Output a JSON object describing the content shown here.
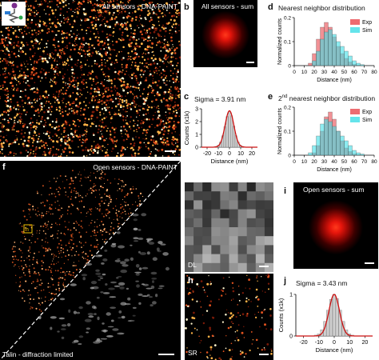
{
  "figure": {
    "panel_a": {
      "letter": "a",
      "caption": "All sensors - DNA-PAINT"
    },
    "panel_b": {
      "letter": "b",
      "caption": "All sensors - sum"
    },
    "panel_c": {
      "letter": "c",
      "caption": "Sigma = 3.91 nm"
    },
    "panel_d": {
      "letter": "d",
      "caption": "Nearest neighbor distribution"
    },
    "panel_e": {
      "letter": "e",
      "caption_pre": "2",
      "caption_sup": "nd",
      "caption_post": " nearest neighbor distribution"
    },
    "panel_f": {
      "letter": "f",
      "caption_top": "Open sensors - DNA-PAINT",
      "caption_bottom": "Talin - diffraction limited",
      "roi_label": "h"
    },
    "panel_g": {
      "letter": "g",
      "label": "DL"
    },
    "panel_h": {
      "letter": "h",
      "label": "SR"
    },
    "panel_i": {
      "letter": "i",
      "caption": "Open sensors - sum"
    },
    "panel_j": {
      "letter": "j",
      "caption": "Sigma = 3.43 nm"
    }
  },
  "colors": {
    "exp": "#e8474e",
    "sim": "#3fdde6",
    "fit": "#cc1111",
    "hist_gray": "#cfcfcf",
    "spot": "#ff2a1a"
  },
  "chart_data": [
    {
      "id": "c",
      "type": "bar",
      "title": "Sigma = 3.91 nm",
      "xlabel": "Distance (nm)",
      "ylabel": "Counts (x1k)",
      "xlim": [
        -25,
        25
      ],
      "ylim": [
        0,
        3
      ],
      "xticks": [
        -20,
        -10,
        0,
        10,
        20
      ],
      "yticks": [
        0,
        1,
        2,
        3
      ],
      "x": [
        -14,
        -12,
        -10,
        -8,
        -6,
        -4,
        -2,
        0,
        2,
        4,
        6,
        8,
        10,
        12,
        14
      ],
      "values": [
        0.02,
        0.06,
        0.15,
        0.4,
        0.9,
        1.6,
        2.4,
        2.8,
        2.45,
        1.65,
        0.9,
        0.4,
        0.15,
        0.06,
        0.02
      ],
      "fit": {
        "type": "gaussian",
        "amplitude": 2.85,
        "mu": 0,
        "sigma": 3.91
      }
    },
    {
      "id": "j",
      "type": "bar",
      "title": "Sigma = 3.43 nm",
      "xlabel": "Distance (nm)",
      "ylabel": "Counts (x1k)",
      "xlim": [
        -25,
        25
      ],
      "ylim": [
        0,
        1
      ],
      "xticks": [
        -20,
        -10,
        0,
        10,
        20
      ],
      "yticks": [
        0,
        1
      ],
      "x": [
        -12,
        -10,
        -8,
        -6,
        -4,
        -2,
        0,
        2,
        4,
        6,
        8,
        10,
        12
      ],
      "values": [
        0.02,
        0.05,
        0.15,
        0.35,
        0.62,
        0.88,
        1.0,
        0.9,
        0.62,
        0.35,
        0.15,
        0.05,
        0.02
      ],
      "fit": {
        "type": "gaussian",
        "amplitude": 1.0,
        "mu": 0,
        "sigma": 3.43
      }
    },
    {
      "id": "d",
      "type": "bar",
      "title": "Nearest neighbor distribution",
      "xlabel": "Distance (nm)",
      "ylabel": "Normalized counts",
      "xlim": [
        0,
        80
      ],
      "ylim": [
        0,
        0.2
      ],
      "xticks": [
        0,
        10,
        20,
        30,
        40,
        50,
        60,
        70,
        80
      ],
      "yticks": [
        0.0,
        0.1,
        0.2
      ],
      "bin_edges": [
        10,
        14,
        18,
        22,
        26,
        30,
        34,
        38,
        42,
        46,
        50,
        54,
        58,
        62,
        66,
        70
      ],
      "legend": [
        "Exp",
        "Sim"
      ],
      "series": [
        {
          "name": "Exp",
          "values": [
            0.0,
            0.01,
            0.05,
            0.11,
            0.16,
            0.18,
            0.16,
            0.12,
            0.08,
            0.05,
            0.03,
            0.015,
            0.005,
            0.002,
            0.0
          ]
        },
        {
          "name": "Sim",
          "values": [
            0.0,
            0.0,
            0.02,
            0.06,
            0.11,
            0.14,
            0.15,
            0.13,
            0.1,
            0.08,
            0.06,
            0.04,
            0.02,
            0.01,
            0.004
          ]
        }
      ]
    },
    {
      "id": "e",
      "type": "bar",
      "title": "2nd nearest neighbor distribution",
      "xlabel": "Distance (nm)",
      "ylabel": "Normalized counts",
      "xlim": [
        0,
        80
      ],
      "ylim": [
        0,
        0.2
      ],
      "xticks": [
        0,
        10,
        20,
        30,
        40,
        50,
        60,
        70,
        80
      ],
      "yticks": [
        0.0,
        0.1,
        0.2
      ],
      "bin_edges": [
        14,
        18,
        22,
        26,
        30,
        34,
        38,
        42,
        46,
        50,
        54,
        58,
        62,
        66,
        70
      ],
      "legend": [
        "Exp",
        "Sim"
      ],
      "series": [
        {
          "name": "Exp",
          "values": [
            0.0,
            0.01,
            0.04,
            0.1,
            0.16,
            0.18,
            0.15,
            0.1,
            0.06,
            0.03,
            0.015,
            0.005,
            0.002,
            0.0
          ]
        },
        {
          "name": "Sim",
          "values": [
            0.01,
            0.04,
            0.08,
            0.13,
            0.15,
            0.14,
            0.12,
            0.1,
            0.08,
            0.06,
            0.04,
            0.02,
            0.01,
            0.005
          ]
        }
      ]
    }
  ]
}
